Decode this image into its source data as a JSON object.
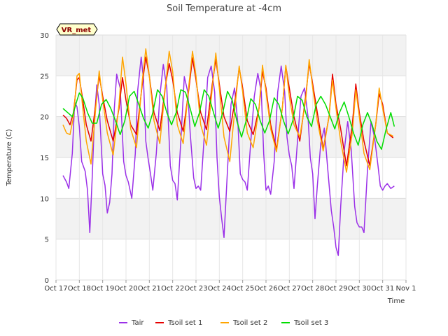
{
  "chart_data": {
    "type": "line",
    "title": "Soil Temperature at -4cm",
    "xlabel": "Time",
    "ylabel": "Temperature (C)",
    "badge": "VR_met",
    "ylim": [
      0,
      30
    ],
    "yticks": [
      0,
      5,
      10,
      15,
      20,
      25,
      30
    ],
    "xlim": [
      0,
      15
    ],
    "xticks": [
      "Oct 17",
      "Oct 18",
      "Oct 19",
      "Oct 20",
      "Oct 21",
      "Oct 22",
      "Oct 23",
      "Oct 24",
      "Oct 25",
      "Oct 26",
      "Oct 27",
      "Oct 28",
      "Oct 29",
      "Oct 30",
      "Oct 31",
      "Nov 1"
    ],
    "grid": true,
    "legend_position": "bottom",
    "series": [
      {
        "name": "Tair",
        "color": "#9b30e8",
        "x": [
          0.3,
          0.45,
          0.55,
          0.7,
          0.8,
          0.9,
          1.0,
          1.1,
          1.25,
          1.35,
          1.45,
          1.55,
          1.65,
          1.75,
          1.85,
          2.0,
          2.1,
          2.2,
          2.3,
          2.4,
          2.5,
          2.6,
          2.75,
          2.9,
          3.0,
          3.1,
          3.25,
          3.4,
          3.5,
          3.65,
          3.75,
          3.85,
          3.95,
          4.05,
          4.15,
          4.3,
          4.45,
          4.6,
          4.75,
          4.9,
          5.0,
          5.1,
          5.2,
          5.35,
          5.5,
          5.65,
          5.75,
          5.9,
          6.0,
          6.1,
          6.2,
          6.35,
          6.5,
          6.65,
          6.8,
          6.9,
          7.0,
          7.1,
          7.2,
          7.35,
          7.5,
          7.65,
          7.8,
          7.9,
          8.0,
          8.1,
          8.2,
          8.35,
          8.5,
          8.65,
          8.8,
          8.9,
          9.0,
          9.1,
          9.2,
          9.35,
          9.5,
          9.65,
          9.8,
          9.9,
          10.0,
          10.1,
          10.2,
          10.35,
          10.5,
          10.65,
          10.8,
          10.9,
          11.0,
          11.1,
          11.2,
          11.35,
          11.5,
          11.65,
          11.8,
          11.9,
          12.0,
          12.1,
          12.2,
          12.35,
          12.5,
          12.65,
          12.8,
          12.9,
          13.0,
          13.1,
          13.2,
          13.35,
          13.5,
          13.65,
          13.8,
          13.9,
          14.0,
          14.1,
          14.2,
          14.35,
          14.5
        ],
        "y": [
          12.8,
          12.0,
          11.2,
          15.5,
          21.8,
          21.2,
          18.8,
          14.5,
          13.3,
          11.0,
          5.8,
          12.5,
          19.8,
          23.9,
          21.5,
          13.0,
          11.6,
          8.2,
          9.5,
          13.0,
          21.0,
          25.2,
          23.5,
          14.5,
          12.8,
          12.0,
          10.0,
          15.5,
          23.2,
          27.3,
          24.5,
          17.0,
          14.8,
          13.0,
          11.0,
          15.5,
          22.5,
          26.4,
          23.5,
          14.0,
          12.2,
          11.8,
          9.8,
          17.0,
          24.9,
          23.0,
          18.0,
          12.5,
          11.2,
          11.5,
          11.0,
          17.5,
          24.8,
          26.2,
          23.0,
          15.0,
          10.2,
          7.5,
          5.2,
          13.5,
          21.5,
          23.5,
          19.0,
          13.0,
          12.3,
          12.0,
          11.0,
          17.0,
          22.5,
          25.3,
          23.0,
          15.5,
          11.0,
          11.5,
          10.5,
          14.5,
          23.0,
          26.2,
          23.0,
          17.5,
          15.3,
          14.0,
          11.2,
          17.0,
          22.5,
          23.5,
          20.0,
          15.0,
          13.0,
          7.5,
          11.5,
          16.8,
          18.6,
          13.5,
          8.5,
          6.5,
          4.0,
          3.0,
          9.0,
          15.8,
          19.4,
          16.0,
          9.0,
          7.0,
          6.5,
          6.5,
          5.8,
          13.5,
          19.4,
          17.5,
          14.0,
          11.5,
          11.0,
          11.5,
          11.8,
          11.2,
          11.5
        ]
      },
      {
        "name": "Tsoil set 1",
        "color": "#e60000",
        "x": [
          0.3,
          0.45,
          0.6,
          0.75,
          0.9,
          1.0,
          1.15,
          1.3,
          1.5,
          1.7,
          1.85,
          2.0,
          2.2,
          2.45,
          2.7,
          2.85,
          3.0,
          3.2,
          3.45,
          3.7,
          3.85,
          4.0,
          4.2,
          4.45,
          4.7,
          4.85,
          5.0,
          5.2,
          5.45,
          5.7,
          5.85,
          6.0,
          6.2,
          6.45,
          6.7,
          6.85,
          7.0,
          7.2,
          7.45,
          7.7,
          7.85,
          8.0,
          8.2,
          8.45,
          8.7,
          8.85,
          9.0,
          9.2,
          9.45,
          9.7,
          9.85,
          10.0,
          10.2,
          10.45,
          10.7,
          10.85,
          11.0,
          11.2,
          11.45,
          11.7,
          11.85,
          12.0,
          12.2,
          12.45,
          12.7,
          12.85,
          13.0,
          13.2,
          13.45,
          13.7,
          13.85,
          14.0,
          14.2,
          14.45
        ],
        "y": [
          20.2,
          19.8,
          19.0,
          20.5,
          24.5,
          24.8,
          22.0,
          19.0,
          17.0,
          21.5,
          25.0,
          22.5,
          19.5,
          17.0,
          21.0,
          24.8,
          22.0,
          19.0,
          17.8,
          24.0,
          27.3,
          25.0,
          20.5,
          18.3,
          24.0,
          26.5,
          24.5,
          20.5,
          18.2,
          23.5,
          27.2,
          24.5,
          20.5,
          18.4,
          24.0,
          27.0,
          24.0,
          20.0,
          18.2,
          22.5,
          26.0,
          23.5,
          19.5,
          17.8,
          21.0,
          25.5,
          23.5,
          19.0,
          16.0,
          21.0,
          26.2,
          23.5,
          20.0,
          17.0,
          22.5,
          26.5,
          24.0,
          20.5,
          16.0,
          20.0,
          25.2,
          21.5,
          18.5,
          14.0,
          19.0,
          24.0,
          20.5,
          17.0,
          14.0,
          19.0,
          22.8,
          21.5,
          18.0,
          17.4
        ]
      },
      {
        "name": "Tsoil set 2",
        "color": "#ffa500",
        "x": [
          0.3,
          0.45,
          0.6,
          0.75,
          0.9,
          1.0,
          1.15,
          1.3,
          1.5,
          1.7,
          1.85,
          2.0,
          2.2,
          2.45,
          2.7,
          2.85,
          3.0,
          3.2,
          3.45,
          3.7,
          3.85,
          4.0,
          4.2,
          4.45,
          4.7,
          4.85,
          5.0,
          5.2,
          5.45,
          5.7,
          5.85,
          6.0,
          6.2,
          6.45,
          6.7,
          6.85,
          7.0,
          7.2,
          7.45,
          7.7,
          7.85,
          8.0,
          8.2,
          8.45,
          8.7,
          8.85,
          9.0,
          9.2,
          9.45,
          9.7,
          9.85,
          10.0,
          10.2,
          10.45,
          10.7,
          10.85,
          11.0,
          11.2,
          11.45,
          11.7,
          11.85,
          12.0,
          12.2,
          12.45,
          12.7,
          12.85,
          13.0,
          13.2,
          13.45,
          13.7,
          13.85,
          14.0,
          14.2,
          14.45
        ],
        "y": [
          19.0,
          18.0,
          17.8,
          20.0,
          25.0,
          25.3,
          21.0,
          17.0,
          14.2,
          21.0,
          25.6,
          22.0,
          18.0,
          15.3,
          21.5,
          27.3,
          24.0,
          18.5,
          16.2,
          24.5,
          28.3,
          25.0,
          19.5,
          16.7,
          24.0,
          28.0,
          25.5,
          19.0,
          16.7,
          24.0,
          28.0,
          25.0,
          19.0,
          16.5,
          23.5,
          27.8,
          23.5,
          17.5,
          14.5,
          22.0,
          26.2,
          23.0,
          18.0,
          16.2,
          21.0,
          26.3,
          23.0,
          18.5,
          15.7,
          21.0,
          26.3,
          22.5,
          19.0,
          17.5,
          22.0,
          27.0,
          23.5,
          19.5,
          15.8,
          20.0,
          24.5,
          21.0,
          17.0,
          13.2,
          18.0,
          23.3,
          20.0,
          15.5,
          13.5,
          19.0,
          23.5,
          21.0,
          18.0,
          17.6
        ]
      },
      {
        "name": "Tsoil set 3",
        "color": "#00dd00",
        "x": [
          0.3,
          0.5,
          0.7,
          0.9,
          1.0,
          1.15,
          1.35,
          1.55,
          1.75,
          1.95,
          2.15,
          2.35,
          2.55,
          2.75,
          2.95,
          3.15,
          3.35,
          3.55,
          3.75,
          3.95,
          4.15,
          4.35,
          4.55,
          4.75,
          4.95,
          5.15,
          5.35,
          5.55,
          5.75,
          5.95,
          6.15,
          6.35,
          6.55,
          6.75,
          6.95,
          7.15,
          7.35,
          7.55,
          7.75,
          7.95,
          8.15,
          8.35,
          8.55,
          8.75,
          8.95,
          9.15,
          9.35,
          9.55,
          9.75,
          9.95,
          10.15,
          10.35,
          10.55,
          10.75,
          10.95,
          11.15,
          11.35,
          11.55,
          11.75,
          11.95,
          12.15,
          12.35,
          12.55,
          12.75,
          12.95,
          13.15,
          13.35,
          13.55,
          13.75,
          13.95,
          14.15,
          14.35,
          14.5
        ],
        "y": [
          21.0,
          20.5,
          20.0,
          22.0,
          22.9,
          22.3,
          20.5,
          19.2,
          19.2,
          21.5,
          22.1,
          21.0,
          19.5,
          17.8,
          19.5,
          22.5,
          23.1,
          21.5,
          19.8,
          18.6,
          20.5,
          23.3,
          22.5,
          20.5,
          19.0,
          20.5,
          23.3,
          23.0,
          21.0,
          18.8,
          20.5,
          23.3,
          22.5,
          20.5,
          18.6,
          20.5,
          23.1,
          22.0,
          19.5,
          17.5,
          19.5,
          22.2,
          21.5,
          19.5,
          18.0,
          19.5,
          22.3,
          21.5,
          19.5,
          17.9,
          19.5,
          22.5,
          22.0,
          20.0,
          18.8,
          21.5,
          22.5,
          21.5,
          20.0,
          18.5,
          20.5,
          21.8,
          20.0,
          18.0,
          16.5,
          19.0,
          20.5,
          19.0,
          17.0,
          16.0,
          18.5,
          20.5,
          18.8
        ]
      }
    ]
  }
}
